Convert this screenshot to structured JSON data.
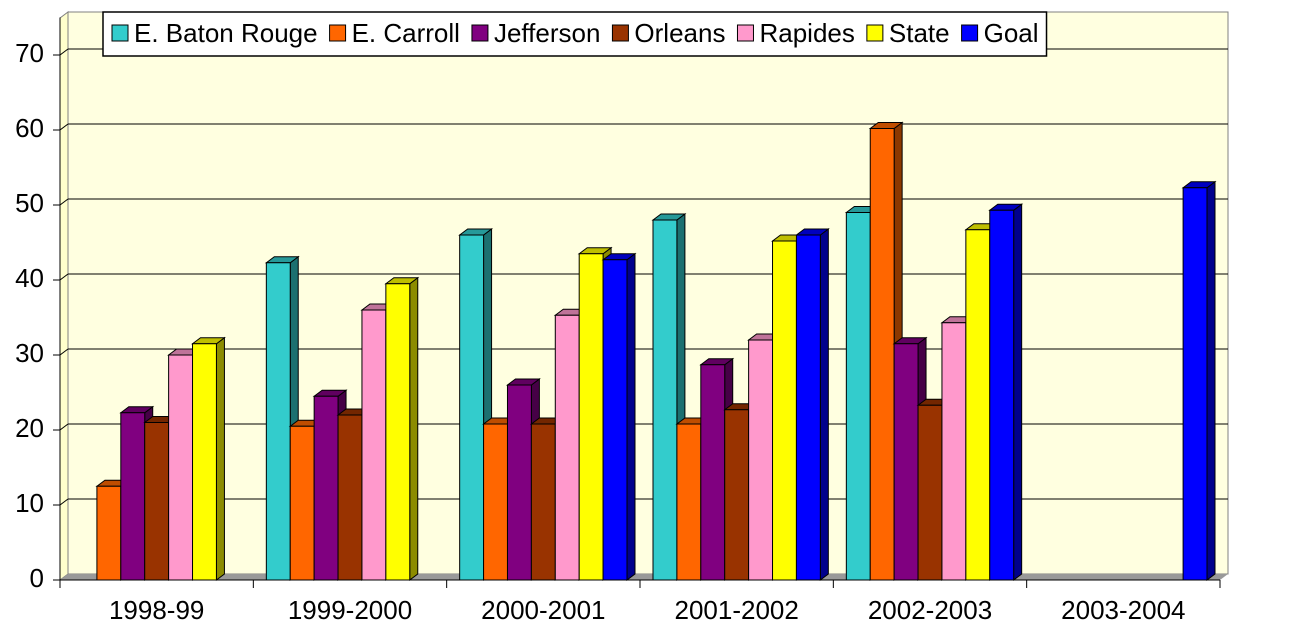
{
  "chart_data": {
    "type": "bar3d",
    "categories": [
      "1998-99",
      "1999-2000",
      "2000-2001",
      "2001-2002",
      "2002-2003",
      "2003-2004"
    ],
    "series": [
      {
        "name": "E. Baton Rouge",
        "color": "#33cccc",
        "label_color": "#000000",
        "values": [
          null,
          42.3,
          46,
          48,
          49,
          null
        ]
      },
      {
        "name": "E. Carroll",
        "color": "#ff6600",
        "label_color": "#000000",
        "values": [
          12.5,
          20.5,
          20.8,
          20.8,
          60.2,
          null
        ]
      },
      {
        "name": "Jefferson",
        "color": "#800080",
        "label_color": "#000000",
        "values": [
          22.3,
          24.5,
          26,
          28.7,
          31.5,
          null
        ]
      },
      {
        "name": "Orleans",
        "color": "#993300",
        "label_color": "#000000",
        "values": [
          21,
          22,
          20.8,
          22.7,
          23.3,
          null
        ]
      },
      {
        "name": "Rapides",
        "color": "#ff99cc",
        "label_color": "#000000",
        "values": [
          30,
          36,
          35.3,
          32,
          34.3,
          null
        ]
      },
      {
        "name": "State",
        "color": "#ffff00",
        "label_color": "#ffff00",
        "values": [
          31.5,
          39.5,
          43.5,
          45.2,
          46.7,
          null
        ]
      },
      {
        "name": "Goal",
        "color": "#0000ff",
        "label_color": "#0000ff",
        "values": [
          null,
          null,
          42.7,
          46,
          49.3,
          52.3
        ]
      }
    ],
    "ylim": [
      0,
      75
    ],
    "yticks": [
      0,
      10,
      20,
      30,
      40,
      50,
      60,
      70
    ],
    "grid": true,
    "legend": "top"
  }
}
